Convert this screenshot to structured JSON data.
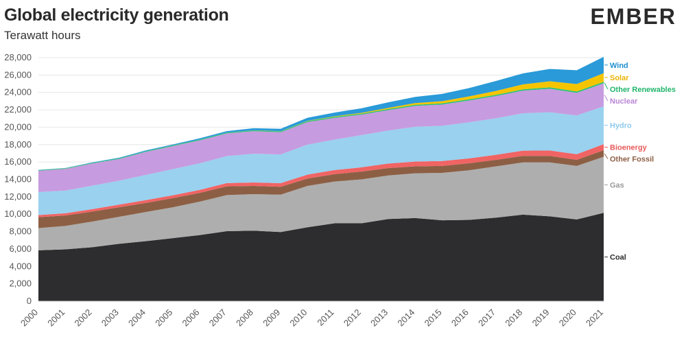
{
  "header": {
    "title": "Global electricity generation",
    "subtitle": "Terawatt hours",
    "logo": "EMBER"
  },
  "chart_data": {
    "type": "area",
    "stacked": true,
    "title": "Global electricity generation",
    "ylabel": "Terawatt hours",
    "xlabel": "",
    "x": [
      2000,
      2001,
      2002,
      2003,
      2004,
      2005,
      2006,
      2007,
      2008,
      2009,
      2010,
      2011,
      2012,
      2013,
      2014,
      2015,
      2016,
      2017,
      2018,
      2019,
      2020,
      2021
    ],
    "ylim": [
      0,
      28000
    ],
    "yticks": [
      0,
      2000,
      4000,
      6000,
      8000,
      10000,
      12000,
      14000,
      16000,
      18000,
      20000,
      22000,
      24000,
      26000,
      28000
    ],
    "grid": true,
    "series": [
      {
        "name": "Coal",
        "color": "#2d2c2f",
        "label_color": "#2d2c2f",
        "values": [
          5850,
          5950,
          6200,
          6600,
          6900,
          7250,
          7600,
          8050,
          8100,
          7950,
          8500,
          8950,
          8950,
          9450,
          9550,
          9300,
          9350,
          9600,
          9950,
          9750,
          9400,
          10150
        ]
      },
      {
        "name": "Gas",
        "color": "#aeaeae",
        "label_color": "#9a9a9a",
        "values": [
          2550,
          2700,
          2950,
          3100,
          3350,
          3550,
          3850,
          4150,
          4200,
          4300,
          4750,
          4800,
          5050,
          5000,
          5150,
          5450,
          5700,
          5900,
          6000,
          6200,
          6150,
          6450
        ]
      },
      {
        "name": "Other Fossil",
        "color": "#8c5f44",
        "label_color": "#8c5f44",
        "values": [
          1250,
          1200,
          1150,
          1100,
          1050,
          1050,
          1000,
          1000,
          950,
          900,
          850,
          850,
          900,
          850,
          800,
          800,
          800,
          750,
          750,
          750,
          700,
          750
        ]
      },
      {
        "name": "Bioenergy",
        "color": "#f06464",
        "label_color": "#e85a5a",
        "values": [
          250,
          260,
          280,
          300,
          320,
          330,
          350,
          380,
          400,
          420,
          450,
          470,
          490,
          520,
          550,
          560,
          570,
          580,
          600,
          620,
          650,
          700
        ]
      },
      {
        "name": "Hydro",
        "color": "#99d1ef",
        "label_color": "#8cc8ea",
        "values": [
          2650,
          2600,
          2700,
          2750,
          2900,
          3000,
          3050,
          3100,
          3300,
          3300,
          3450,
          3500,
          3700,
          3800,
          4000,
          4050,
          4150,
          4200,
          4300,
          4400,
          4450,
          4350
        ]
      },
      {
        "name": "Nuclear",
        "color": "#c79bdf",
        "label_color": "#b884d6",
        "values": [
          2450,
          2500,
          2550,
          2500,
          2650,
          2650,
          2650,
          2600,
          2600,
          2550,
          2600,
          2500,
          2350,
          2350,
          2400,
          2450,
          2500,
          2550,
          2600,
          2700,
          2600,
          2650
        ]
      },
      {
        "name": "Other Renewables",
        "color": "#2bc278",
        "label_color": "#21b56c",
        "values": [
          60,
          65,
          70,
          75,
          80,
          85,
          90,
          95,
          100,
          105,
          110,
          115,
          120,
          125,
          130,
          135,
          140,
          145,
          150,
          155,
          160,
          165
        ]
      },
      {
        "name": "Solar",
        "color": "#f5c400",
        "label_color": "#e8b400",
        "values": [
          1,
          2,
          2,
          3,
          4,
          4,
          6,
          8,
          12,
          20,
          30,
          60,
          95,
          130,
          190,
          250,
          330,
          450,
          570,
          700,
          850,
          1000
        ]
      },
      {
        "name": "Wind",
        "color": "#2a9ad8",
        "label_color": "#1f8fd0",
        "values": [
          30,
          38,
          52,
          63,
          85,
          104,
          133,
          171,
          220,
          277,
          345,
          437,
          522,
          637,
          713,
          832,
          960,
          1140,
          1270,
          1420,
          1590,
          1870
        ]
      }
    ]
  }
}
